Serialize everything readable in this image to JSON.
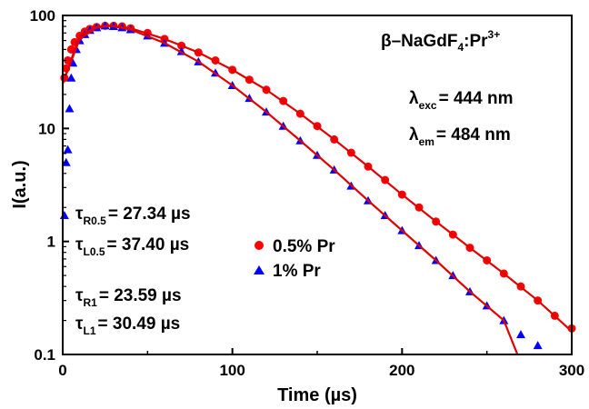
{
  "chart_data": {
    "type": "scatter",
    "xlabel": "Time (µs)",
    "ylabel": "I(a.u.)",
    "xlim": [
      0,
      300
    ],
    "ylim": [
      0.1,
      100
    ],
    "yscale": "log",
    "x_ticks": [
      0,
      100,
      200,
      300
    ],
    "y_ticks": [
      0.1,
      1,
      10,
      100
    ],
    "x_tick_labels": [
      "0",
      "100",
      "200",
      "300"
    ],
    "y_tick_labels": [
      "0.1",
      "1",
      "10",
      "100"
    ],
    "grid": false,
    "legend_position": "center",
    "series": [
      {
        "name": "0.5% Pr",
        "marker": "circle",
        "color": "#ff0000",
        "points": [
          [
            1,
            28
          ],
          [
            2,
            34
          ],
          [
            3,
            40
          ],
          [
            5,
            50
          ],
          [
            7,
            58
          ],
          [
            10,
            66
          ],
          [
            13,
            72
          ],
          [
            16,
            76
          ],
          [
            20,
            79
          ],
          [
            25,
            81
          ],
          [
            30,
            81
          ],
          [
            35,
            80
          ],
          [
            40,
            77
          ],
          [
            50,
            70
          ],
          [
            60,
            62
          ],
          [
            70,
            54
          ],
          [
            80,
            47
          ],
          [
            90,
            40
          ],
          [
            100,
            33
          ],
          [
            110,
            27
          ],
          [
            120,
            22
          ],
          [
            130,
            17.5
          ],
          [
            140,
            13.5
          ],
          [
            150,
            10.5
          ],
          [
            160,
            8.0
          ],
          [
            170,
            6.1
          ],
          [
            180,
            4.6
          ],
          [
            190,
            3.5
          ],
          [
            200,
            2.6
          ],
          [
            210,
            2.0
          ],
          [
            220,
            1.5
          ],
          [
            230,
            1.15
          ],
          [
            240,
            0.88
          ],
          [
            250,
            0.68
          ],
          [
            260,
            0.52
          ],
          [
            270,
            0.4
          ],
          [
            280,
            0.3
          ],
          [
            290,
            0.22
          ],
          [
            300,
            0.17
          ]
        ],
        "fit_line": [
          [
            0,
            25
          ],
          [
            10,
            66
          ],
          [
            20,
            79
          ],
          [
            28,
            81
          ],
          [
            40,
            77
          ],
          [
            60,
            62
          ],
          [
            80,
            47
          ],
          [
            100,
            33
          ],
          [
            120,
            22
          ],
          [
            140,
            13.5
          ],
          [
            160,
            8.0
          ],
          [
            180,
            4.6
          ],
          [
            200,
            2.6
          ],
          [
            220,
            1.5
          ],
          [
            240,
            0.88
          ],
          [
            260,
            0.52
          ],
          [
            280,
            0.3
          ],
          [
            300,
            0.16
          ]
        ]
      },
      {
        "name": "1% Pr",
        "marker": "triangle",
        "color": "#0000ff",
        "points": [
          [
            1,
            1.7
          ],
          [
            2,
            5.0
          ],
          [
            3,
            6.5
          ],
          [
            4,
            15
          ],
          [
            5,
            28
          ],
          [
            6,
            38
          ],
          [
            8,
            50
          ],
          [
            10,
            60
          ],
          [
            13,
            68
          ],
          [
            16,
            74
          ],
          [
            20,
            78
          ],
          [
            25,
            81
          ],
          [
            30,
            80
          ],
          [
            35,
            78
          ],
          [
            40,
            75
          ],
          [
            50,
            66
          ],
          [
            60,
            57
          ],
          [
            70,
            48
          ],
          [
            80,
            39
          ],
          [
            90,
            31
          ],
          [
            100,
            24
          ],
          [
            110,
            18.5
          ],
          [
            120,
            14
          ],
          [
            130,
            10.5
          ],
          [
            140,
            7.8
          ],
          [
            150,
            5.8
          ],
          [
            160,
            4.3
          ],
          [
            170,
            3.1
          ],
          [
            180,
            2.3
          ],
          [
            190,
            1.7
          ],
          [
            200,
            1.25
          ],
          [
            210,
            0.92
          ],
          [
            220,
            0.68
          ],
          [
            230,
            0.5
          ],
          [
            240,
            0.36
          ],
          [
            250,
            0.27
          ],
          [
            260,
            0.2
          ],
          [
            270,
            0.15
          ],
          [
            280,
            0.12
          ]
        ],
        "fit_line": [
          [
            0,
            25
          ],
          [
            10,
            62
          ],
          [
            20,
            78
          ],
          [
            28,
            81
          ],
          [
            40,
            75
          ],
          [
            60,
            57
          ],
          [
            80,
            39
          ],
          [
            100,
            24
          ],
          [
            120,
            14
          ],
          [
            140,
            7.8
          ],
          [
            160,
            4.3
          ],
          [
            180,
            2.3
          ],
          [
            200,
            1.25
          ],
          [
            220,
            0.68
          ],
          [
            240,
            0.36
          ],
          [
            260,
            0.2
          ],
          [
            268,
            0.1
          ]
        ]
      }
    ],
    "annotations": {
      "compound": {
        "base": "β–NaGdF",
        "sub": "4",
        "mid": ":Pr",
        "sup": "3+"
      },
      "excitation": {
        "symbol": "λ",
        "sub": "exc",
        "value": "= 444 nm"
      },
      "emission": {
        "symbol": "λ",
        "sub": "em",
        "value": "= 484 nm"
      },
      "tau_r05": {
        "symbol": "τ",
        "sub": "R0.5",
        "value": "= 27.34 µs"
      },
      "tau_l05": {
        "symbol": "τ",
        "sub": "L0.5",
        "value": "= 37.40 µs"
      },
      "tau_r1": {
        "symbol": "τ",
        "sub": "R1",
        "value": "= 23.59 µs"
      },
      "tau_l1": {
        "symbol": "τ",
        "sub": "L1",
        "value": "= 30.49 µs"
      }
    }
  }
}
